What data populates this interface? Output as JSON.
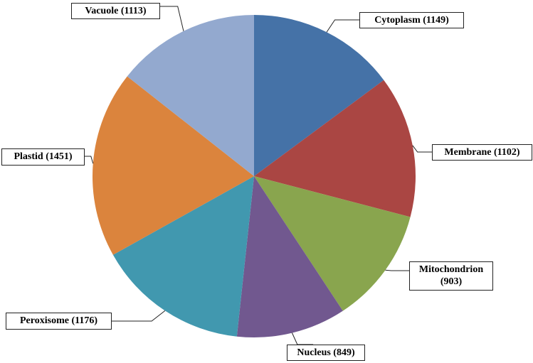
{
  "chart_data": {
    "type": "pie",
    "values": [
      1149,
      1102,
      903,
      849,
      1176,
      1451,
      1113
    ],
    "value_labels": [
      "Cytoplasm  (1149)",
      "Membrane (1102)",
      "Mitochondrion\n(903)",
      "Nucleus (849)",
      "Peroxisome (1176)",
      "Plastid  (1451)",
      "Vacuole  (1113)"
    ],
    "colors": [
      "#4572a7",
      "#aa4643",
      "#89a54e",
      "#71588f",
      "#4198af",
      "#db843d",
      "#93a9cf"
    ]
  }
}
